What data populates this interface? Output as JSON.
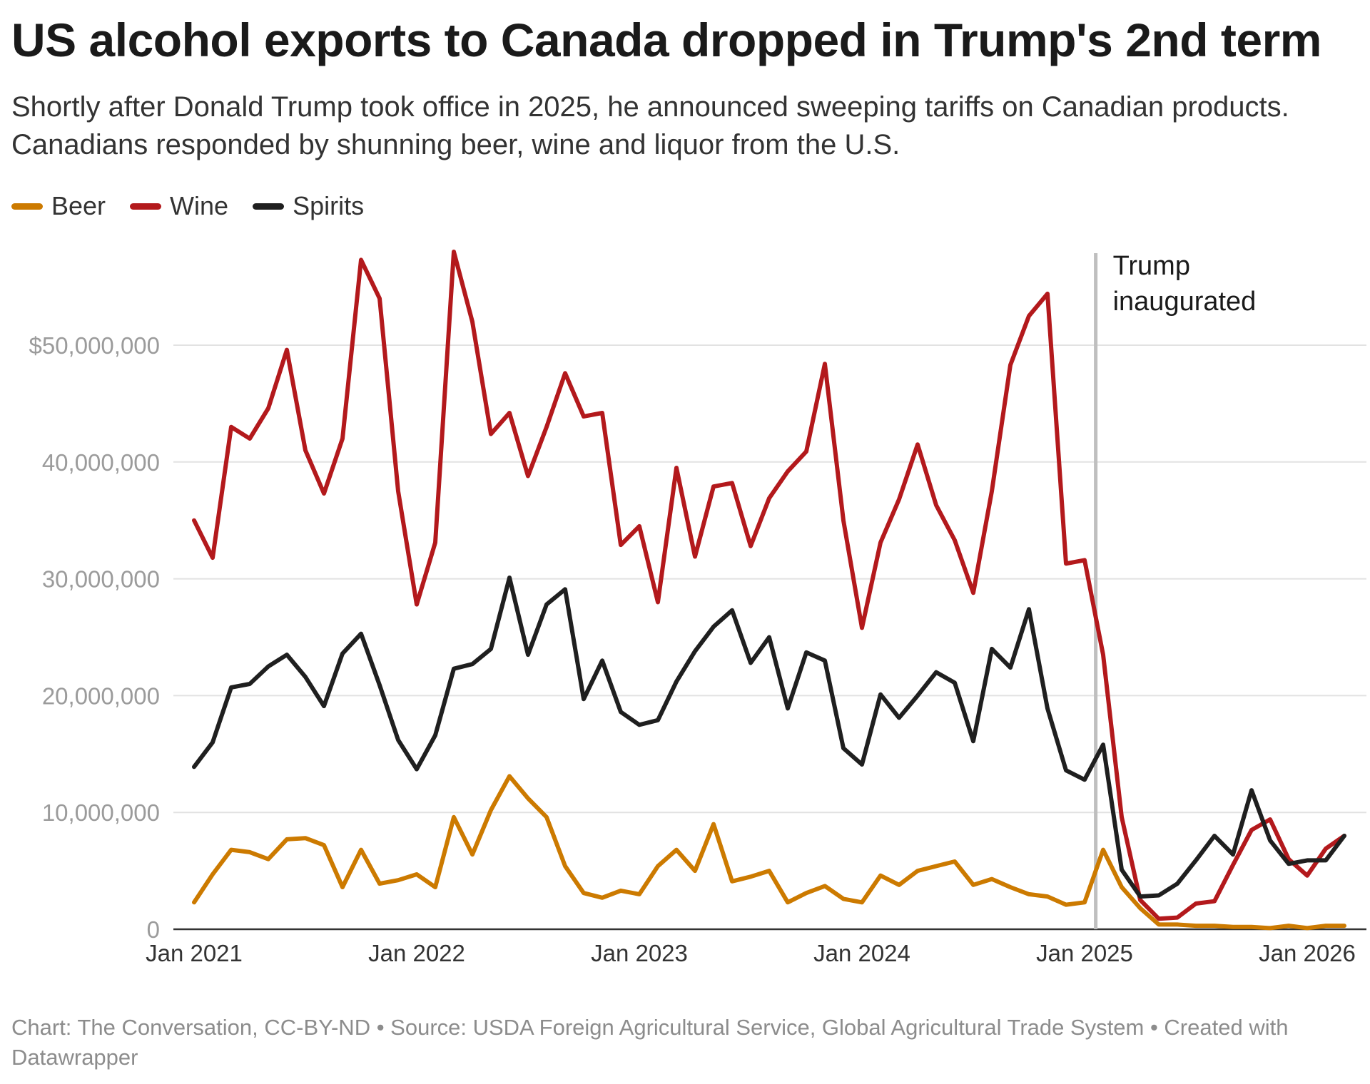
{
  "chart_data": {
    "type": "line",
    "title": "US alcohol exports to Canada dropped in Trump's 2nd term",
    "subtitle": "Shortly after Donald Trump took office in 2025, he announced sweeping tariffs on Canadian products. Canadians responded by shunning beer, wine and liquor from the U.S.",
    "x_start": "2021-01",
    "x_ticks": [
      {
        "label": "Jan 2021",
        "month": 0
      },
      {
        "label": "Jan 2022",
        "month": 12
      },
      {
        "label": "Jan 2023",
        "month": 24
      },
      {
        "label": "Jan 2024",
        "month": 36
      },
      {
        "label": "Jan 2025",
        "month": 48
      },
      {
        "label": "Jan 2026",
        "month": 60
      }
    ],
    "y_ticks": [
      {
        "value": 0,
        "label": "0"
      },
      {
        "value": 10000000,
        "label": "10,000,000"
      },
      {
        "value": 20000000,
        "label": "20,000,000"
      },
      {
        "value": 30000000,
        "label": "30,000,000"
      },
      {
        "value": 40000000,
        "label": "40,000,000"
      },
      {
        "value": 50000000,
        "label": "$50,000,000"
      }
    ],
    "ylim": [
      0,
      58000000
    ],
    "xlim": [
      0,
      62
    ],
    "grid": "horizontal",
    "legend_position": "top-left",
    "annotation": {
      "text_lines": [
        "Trump",
        "inaugurated"
      ],
      "month": 48.6
    },
    "series": [
      {
        "name": "Beer",
        "color": "#cc7a00",
        "values": [
          2.3,
          4.7,
          6.8,
          6.6,
          6.0,
          7.7,
          7.8,
          7.2,
          3.6,
          6.8,
          3.9,
          4.2,
          4.7,
          3.6,
          9.6,
          6.4,
          10.2,
          13.1,
          11.2,
          9.6,
          5.4,
          3.1,
          2.7,
          3.3,
          3.0,
          5.4,
          6.8,
          5.0,
          9.0,
          4.1,
          4.5,
          5.0,
          2.3,
          3.1,
          3.7,
          2.6,
          2.3,
          4.6,
          3.8,
          5.0,
          5.4,
          5.8,
          3.8,
          4.3,
          3.6,
          3.0,
          2.8,
          2.1,
          2.3,
          6.8,
          3.6,
          1.8,
          0.4,
          0.4,
          0.3,
          0.3,
          0.2,
          0.2,
          0.1,
          0.3,
          0.1,
          0.3,
          0.3
        ]
      },
      {
        "name": "Wine",
        "color": "#b3191c",
        "values": [
          35.0,
          31.8,
          43.0,
          42.0,
          44.6,
          49.6,
          41.0,
          37.3,
          42.0,
          57.3,
          54.0,
          37.5,
          27.8,
          33.1,
          58.0,
          52.0,
          42.4,
          44.2,
          38.8,
          43.0,
          47.6,
          43.9,
          44.2,
          32.9,
          34.5,
          28.0,
          39.5,
          31.9,
          37.9,
          38.2,
          32.8,
          36.9,
          39.2,
          40.9,
          48.4,
          35.0,
          25.8,
          33.1,
          36.8,
          41.5,
          36.3,
          33.3,
          28.8,
          37.5,
          48.3,
          52.5,
          54.4,
          31.3,
          31.6,
          23.5,
          9.6,
          2.5,
          0.9,
          1.0,
          2.2,
          2.4,
          5.5,
          8.5,
          9.4,
          6.0,
          4.6,
          6.9,
          8.0
        ]
      },
      {
        "name": "Spirits",
        "color": "#1f1f1f",
        "values": [
          13.9,
          16.0,
          20.7,
          21.0,
          22.5,
          23.5,
          21.6,
          19.1,
          23.6,
          25.3,
          20.9,
          16.2,
          13.7,
          16.6,
          22.3,
          22.7,
          24.0,
          30.1,
          23.5,
          27.8,
          29.1,
          19.7,
          23.0,
          18.6,
          17.5,
          17.9,
          21.2,
          23.8,
          25.9,
          27.3,
          22.8,
          25.0,
          18.9,
          23.7,
          23.0,
          15.5,
          14.1,
          20.1,
          18.1,
          20.0,
          22.0,
          21.1,
          16.1,
          24.0,
          22.4,
          27.4,
          18.9,
          13.6,
          12.8,
          15.8,
          5.1,
          2.8,
          2.9,
          3.9,
          5.9,
          8.0,
          6.4,
          11.9,
          7.6,
          5.6,
          5.9,
          5.9,
          8.0
        ]
      }
    ],
    "value_unit_multiplier": 1000000,
    "legend": [
      {
        "name": "Beer",
        "color": "#cc7a00"
      },
      {
        "name": "Wine",
        "color": "#b3191c"
      },
      {
        "name": "Spirits",
        "color": "#1f1f1f"
      }
    ]
  },
  "footer": "Chart: The Conversation, CC-BY-ND • Source: USDA Foreign Agricultural Service, Global Agricultural Trade System • Created with Datawrapper",
  "colors": {
    "gridline": "#e2e2e2",
    "baseline": "#333333",
    "annotation_line": "#bfbfbf"
  }
}
